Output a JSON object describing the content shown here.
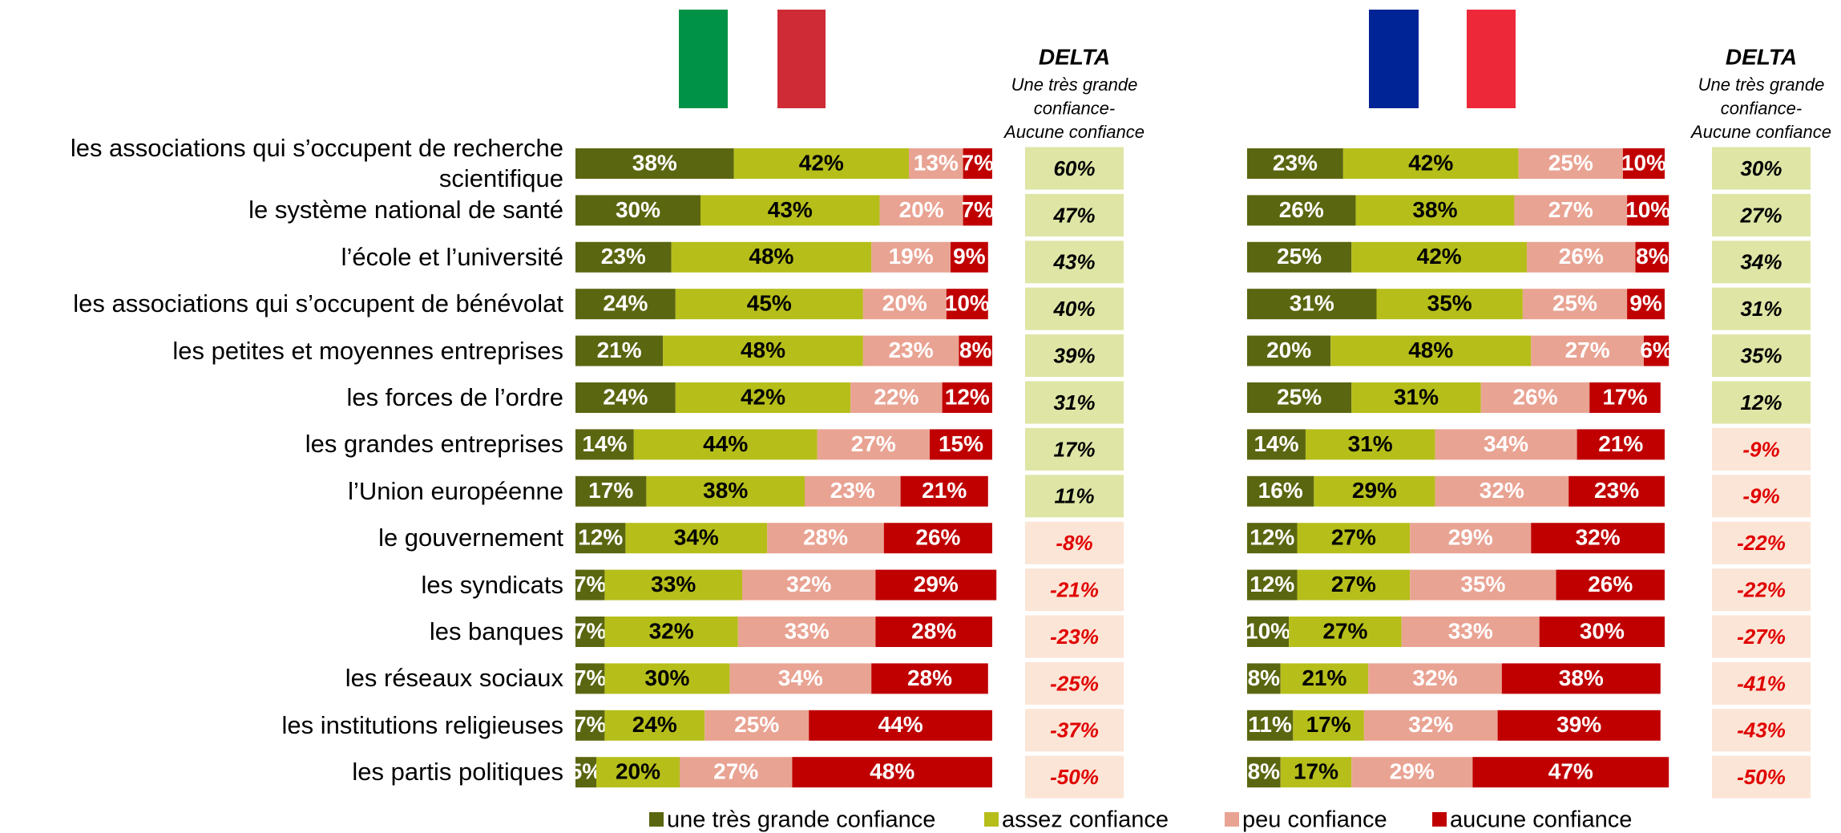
{
  "chart_data": [
    {
      "type": "stacked-bar",
      "categories": [
        "les associations qui s’occupent de recherche scientifique",
        "le système national de santé",
        "l’école et l’université",
        "les associations qui s’occupent de bénévolat",
        "les petites et moyennes entreprises",
        "les forces de l’ordre",
        "les grandes entreprises",
        "l’Union européenne",
        "le gouvernement",
        "les syndicats",
        "les banques",
        "les réseaux sociaux",
        "les institutions religieuses",
        "les partis politiques"
      ],
      "xlim": [
        0,
        100
      ],
      "series": [
        {
          "name": "une très grande confiance",
          "color": "#5b6610",
          "values": [
            38,
            30,
            23,
            24,
            21,
            24,
            14,
            17,
            12,
            7,
            7,
            7,
            7,
            5
          ],
          "value_labels": [
            "38%",
            "30%",
            "23%",
            "24%",
            "21%",
            "24%",
            "14%",
            "17%",
            "12%",
            "7%",
            "7%",
            "7%",
            "7%",
            "5%"
          ]
        },
        {
          "name": "assez confiance",
          "color": "#b6be1a",
          "values": [
            42,
            43,
            48,
            45,
            48,
            42,
            44,
            38,
            34,
            33,
            32,
            30,
            24,
            20
          ],
          "value_labels": [
            "42%",
            "43%",
            "48%",
            "45%",
            "48%",
            "42%",
            "44%",
            "38%",
            "34%",
            "33%",
            "32%",
            "30%",
            "24%",
            "20%"
          ]
        },
        {
          "name": "peu confiance",
          "color": "#e9a393",
          "values": [
            13,
            20,
            19,
            20,
            23,
            22,
            27,
            23,
            28,
            32,
            33,
            34,
            25,
            27
          ],
          "value_labels": [
            "13%",
            "20%",
            "19%",
            "20%",
            "23%",
            "22%",
            "27%",
            "23%",
            "28%",
            "32%",
            "33%",
            "34%",
            "25%",
            "27%"
          ]
        },
        {
          "name": "aucune confiance",
          "color": "#c00000",
          "values": [
            7,
            7,
            9,
            10,
            8,
            12,
            15,
            21,
            26,
            29,
            28,
            28,
            44,
            48
          ],
          "value_labels": [
            "7%",
            "7%",
            "9%",
            "10%",
            "8%",
            "12%",
            "15%",
            "21%",
            "26%",
            "29%",
            "28%",
            "28%",
            "44%",
            "48%"
          ]
        }
      ],
      "delta_title": "DELTA",
      "delta_subtitle": [
        "Une très grande",
        "confiance-",
        "Aucune confiance"
      ],
      "delta": [
        60,
        47,
        43,
        40,
        39,
        31,
        17,
        11,
        -8,
        -21,
        -23,
        -25,
        -37,
        -50
      ],
      "delta_labels": [
        "60%",
        "47%",
        "43%",
        "40%",
        "39%",
        "31%",
        "17%",
        "11%",
        "-8%",
        "-21%",
        "-23%",
        "-25%",
        "-37%",
        "-50%"
      ]
    },
    {
      "type": "stacked-bar",
      "xlim": [
        0,
        100
      ],
      "series": [
        {
          "color": "#5b6610",
          "values": [
            23,
            26,
            25,
            31,
            20,
            25,
            14,
            16,
            12,
            12,
            10,
            8,
            11,
            8
          ],
          "value_labels": [
            "23%",
            "26%",
            "25%",
            "31%",
            "20%",
            "25%",
            "14%",
            "16%",
            "12%",
            "12%",
            "10%",
            "8%",
            "11%",
            "8%"
          ]
        },
        {
          "color": "#b6be1a",
          "values": [
            42,
            38,
            42,
            35,
            48,
            31,
            31,
            29,
            27,
            27,
            27,
            21,
            17,
            17
          ],
          "value_labels": [
            "42%",
            "38%",
            "42%",
            "35%",
            "48%",
            "31%",
            "31%",
            "29%",
            "27%",
            "27%",
            "27%",
            "21%",
            "17%",
            "17%"
          ]
        },
        {
          "color": "#e9a393",
          "values": [
            25,
            27,
            26,
            25,
            27,
            26,
            34,
            32,
            29,
            35,
            33,
            32,
            32,
            29
          ],
          "value_labels": [
            "25%",
            "27%",
            "26%",
            "25%",
            "27%",
            "26%",
            "34%",
            "32%",
            "29%",
            "35%",
            "33%",
            "32%",
            "32%",
            "29%"
          ]
        },
        {
          "color": "#c00000",
          "values": [
            10,
            10,
            8,
            9,
            6,
            17,
            21,
            23,
            32,
            26,
            30,
            38,
            39,
            47
          ],
          "value_labels": [
            "10%",
            "10%",
            "8%",
            "9%",
            "6%",
            "17%",
            "21%",
            "23%",
            "32%",
            "26%",
            "30%",
            "38%",
            "39%",
            "47%"
          ]
        }
      ],
      "delta_title": "DELTA",
      "delta_subtitle": [
        "Une très grande",
        "confiance-",
        "Aucune confiance"
      ],
      "delta": [
        30,
        27,
        34,
        31,
        35,
        12,
        -9,
        -9,
        -22,
        -22,
        -27,
        -41,
        -43,
        -50
      ],
      "delta_labels": [
        "30%",
        "27%",
        "34%",
        "31%",
        "35%",
        "12%",
        "-9%",
        "-9%",
        "-22%",
        "-22%",
        "-27%",
        "-41%",
        "-43%",
        "-50%"
      ]
    }
  ]
}
